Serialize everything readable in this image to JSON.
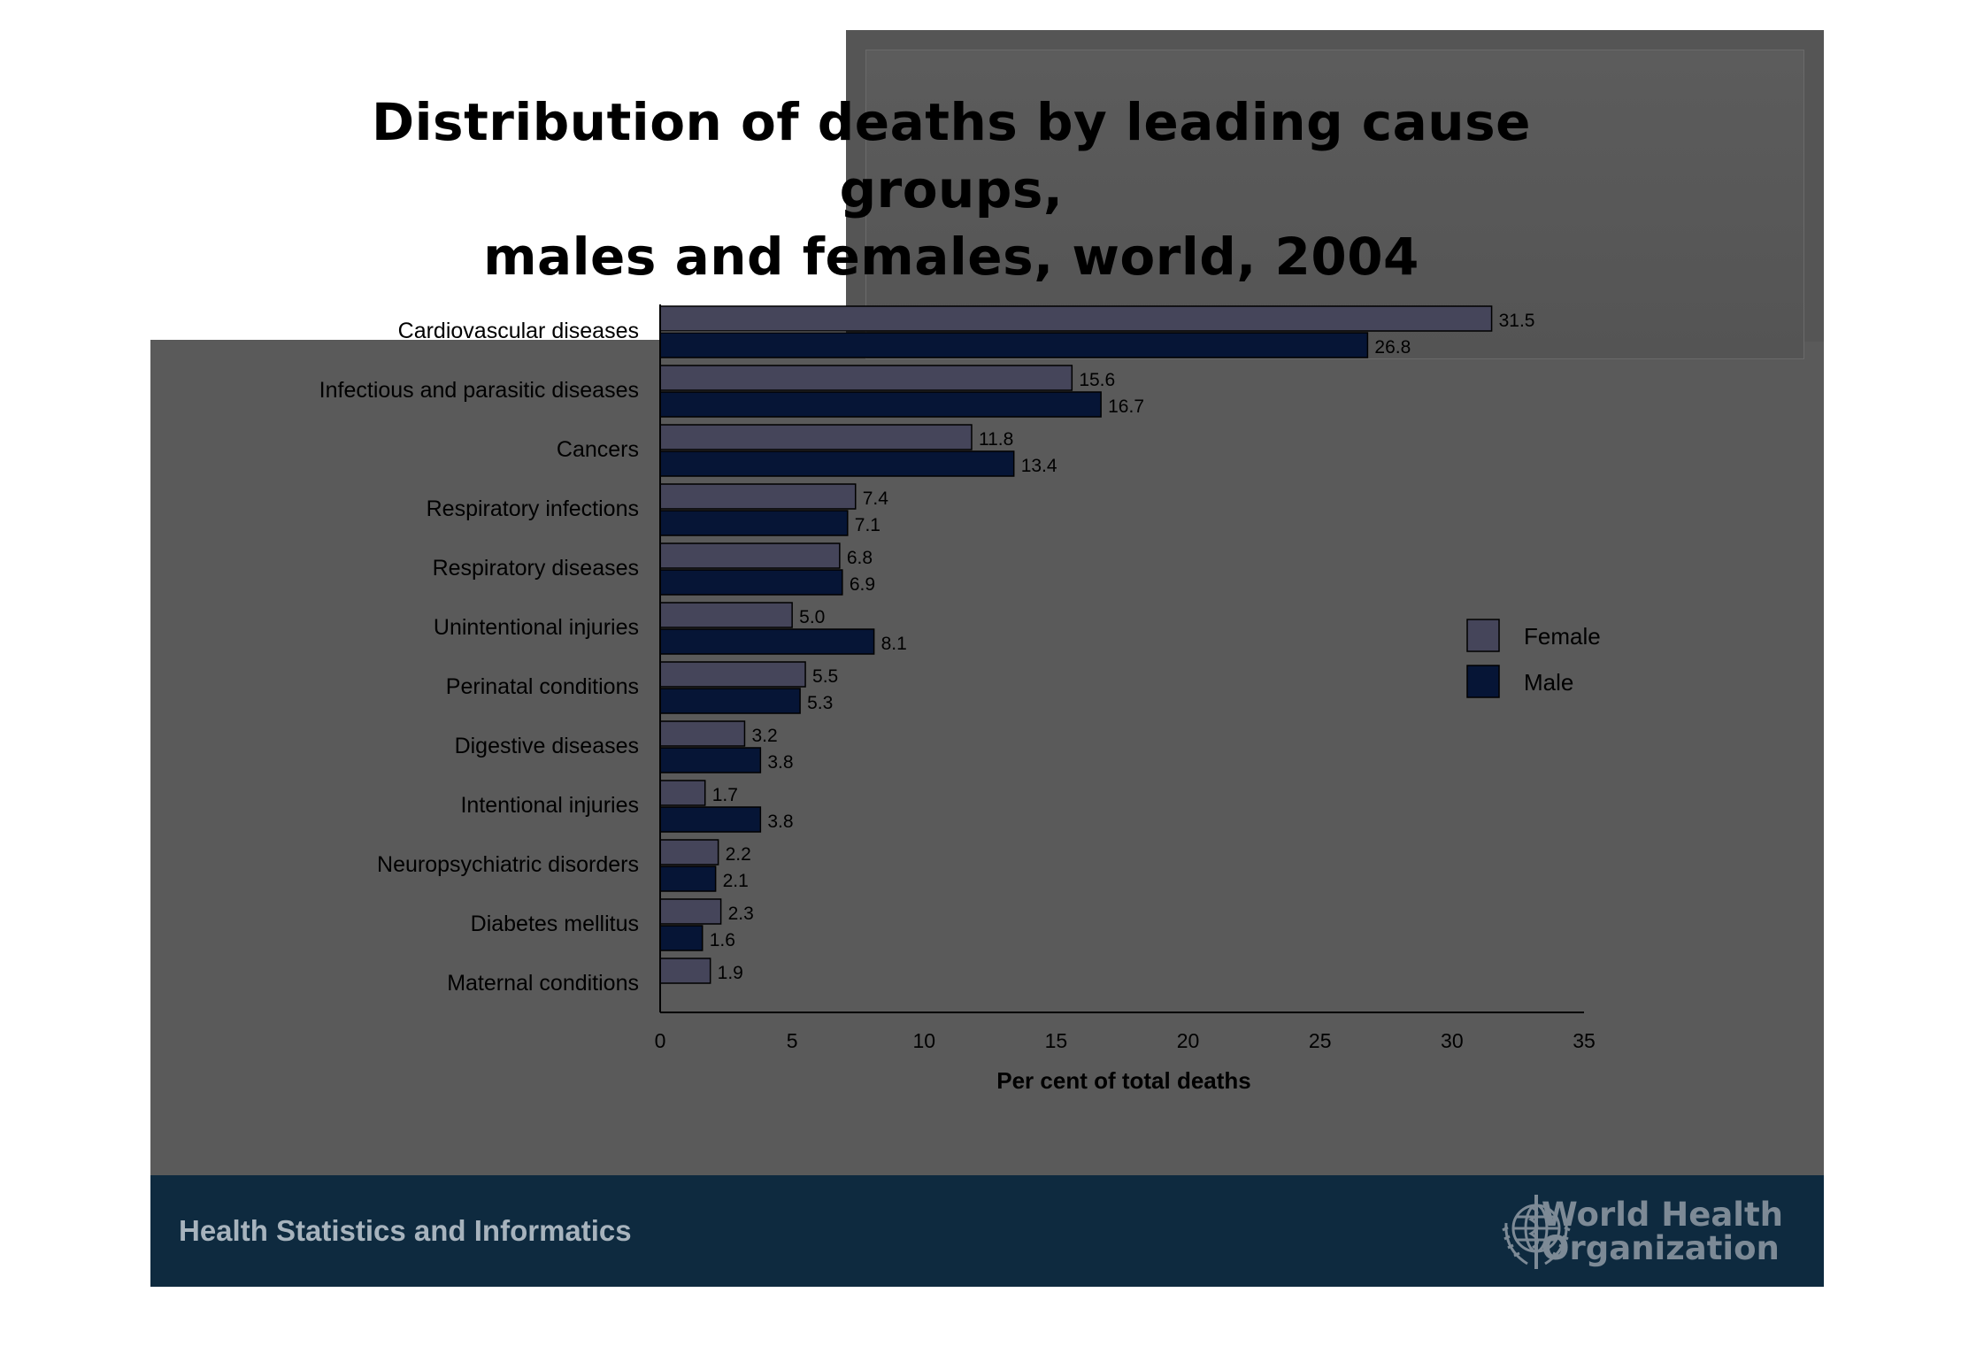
{
  "slide": {
    "title_line1": "Distribution of deaths by leading cause groups,",
    "title_line2": "males and females, world, 2004",
    "footer_left": "Health Statistics and Informatics",
    "org_line1": "World Health",
    "org_line2": "Organization",
    "logo_icon": "who-emblem-icon"
  },
  "colors": {
    "female": "#45455a",
    "male": "#061536",
    "slide_bg": "#5a5a5a",
    "footer_bg": "#0e2a3f"
  },
  "chart_data": {
    "type": "bar",
    "orientation": "horizontal",
    "categories": [
      "Cardiovascular diseases",
      "Infectious and parasitic diseases",
      "Cancers",
      "Respiratory infections",
      "Respiratory diseases",
      "Unintentional injuries",
      "Perinatal conditions",
      "Digestive diseases",
      "Intentional injuries",
      "Neuropsychiatric disorders",
      "Diabetes mellitus",
      "Maternal conditions"
    ],
    "series": [
      {
        "name": "Female",
        "values": [
          31.5,
          15.6,
          11.8,
          7.4,
          6.8,
          5.0,
          5.5,
          3.2,
          1.7,
          2.2,
          2.3,
          1.9
        ],
        "labels": [
          "31.5",
          "15.6",
          "11.8",
          "7.4",
          "6.8",
          "5.0",
          "5.5",
          "3.2",
          "1.7",
          "2.2",
          "2.3",
          "1.9"
        ]
      },
      {
        "name": "Male",
        "values": [
          26.8,
          16.7,
          13.4,
          7.1,
          6.9,
          8.1,
          5.3,
          3.8,
          3.8,
          2.1,
          1.6,
          null
        ],
        "labels": [
          "26.8",
          "16.7",
          "13.4",
          "7.1",
          "6.9",
          "8.1",
          "5.3",
          "3.8",
          "3.8",
          "2.1",
          "1.6",
          ""
        ]
      }
    ],
    "xlabel": "Per cent of total deaths",
    "xlim": [
      0,
      35
    ],
    "xticks": [
      0,
      5,
      10,
      15,
      20,
      25,
      30,
      35
    ],
    "xtick_labels": [
      "0",
      "5",
      "10",
      "15",
      "20",
      "25",
      "30",
      "35"
    ],
    "grid": false,
    "legend": {
      "position": "right",
      "entries": [
        "Female",
        "Male"
      ]
    }
  }
}
